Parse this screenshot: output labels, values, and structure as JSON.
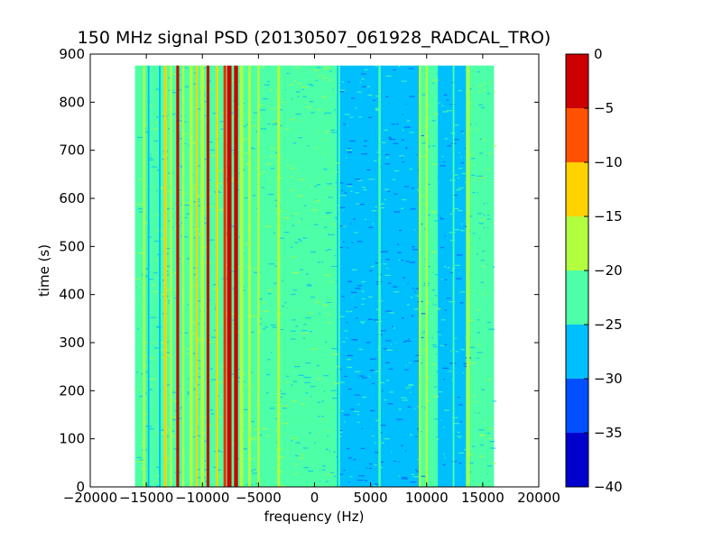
{
  "chart_data": {
    "type": "heatmap",
    "title": "150 MHz signal PSD (20130507_061928_RADCAL_TRO)",
    "xlabel": "frequency (Hz)",
    "ylabel": "time (s)",
    "xlim": [
      -20000,
      20000
    ],
    "ylim": [
      0,
      900
    ],
    "xticks": [
      -20000,
      -15000,
      -10000,
      -5000,
      0,
      5000,
      10000,
      15000,
      20000
    ],
    "xtick_labels": [
      "−20000",
      "−15000",
      "−10000",
      "−5000",
      "0",
      "5000",
      "10000",
      "15000",
      "20000"
    ],
    "yticks": [
      0,
      100,
      200,
      300,
      400,
      500,
      600,
      700,
      800,
      900
    ],
    "ytick_labels": [
      "0",
      "100",
      "200",
      "300",
      "400",
      "500",
      "600",
      "700",
      "800",
      "900"
    ],
    "data_extent": {
      "x": [
        -16000,
        16000
      ],
      "y": [
        0,
        876
      ]
    },
    "colorbar": {
      "levels": [
        -40,
        -35,
        -30,
        -25,
        -20,
        -15,
        -10,
        -5,
        0
      ],
      "tick_labels": [
        "−40",
        "−35",
        "−30",
        "−25",
        "−20",
        "−15",
        "−10",
        "−5",
        "0"
      ],
      "colors": [
        "#0000cc",
        "#0050ff",
        "#00bfff",
        "#4dffa6",
        "#b2ff40",
        "#ffd200",
        "#ff5200",
        "#cc0000"
      ]
    },
    "bands": [
      {
        "x0": -16000,
        "x1": -3100,
        "bin": 3
      },
      {
        "x0": -3100,
        "x1": 2000,
        "bin": 3
      },
      {
        "x0": 2000,
        "x1": 9500,
        "bin": 2
      },
      {
        "x0": 9500,
        "x1": 11000,
        "bin": 3
      },
      {
        "x0": 11000,
        "x1": 13500,
        "bin": 2
      },
      {
        "x0": 13500,
        "x1": 16000,
        "bin": 3
      }
    ],
    "lines": [
      {
        "x": -15200,
        "w": 200,
        "bin": 4
      },
      {
        "x": -14800,
        "w": 150,
        "bin": 2
      },
      {
        "x": -13800,
        "w": 150,
        "bin": 2
      },
      {
        "x": -13300,
        "w": 250,
        "bin": 5
      },
      {
        "x": -12800,
        "w": 200,
        "bin": 4
      },
      {
        "x": -12200,
        "w": 250,
        "bin": 7
      },
      {
        "x": -11700,
        "w": 200,
        "bin": 4
      },
      {
        "x": -11000,
        "w": 300,
        "bin": 4
      },
      {
        "x": -10500,
        "w": 200,
        "bin": 5
      },
      {
        "x": -10000,
        "w": 300,
        "bin": 4
      },
      {
        "x": -9500,
        "w": 250,
        "bin": 7
      },
      {
        "x": -8700,
        "w": 200,
        "bin": 5
      },
      {
        "x": -8000,
        "w": 250,
        "bin": 6
      },
      {
        "x": -7600,
        "w": 400,
        "bin": 7
      },
      {
        "x": -7000,
        "w": 350,
        "bin": 7
      },
      {
        "x": -6500,
        "w": 300,
        "bin": 4
      },
      {
        "x": -5800,
        "w": 250,
        "bin": 4
      },
      {
        "x": -5000,
        "w": 200,
        "bin": 4
      },
      {
        "x": -3200,
        "w": 250,
        "bin": 4
      },
      {
        "x": -2200,
        "w": 150,
        "bin": 3
      },
      {
        "x": 600,
        "w": 120,
        "bin": 3
      },
      {
        "x": 2200,
        "w": 150,
        "bin": 3
      },
      {
        "x": 5800,
        "w": 200,
        "bin": 3
      },
      {
        "x": 9400,
        "w": 200,
        "bin": 4
      },
      {
        "x": 10000,
        "w": 200,
        "bin": 4
      },
      {
        "x": 10400,
        "w": 150,
        "bin": 3
      },
      {
        "x": 12400,
        "w": 150,
        "bin": 3
      },
      {
        "x": 13700,
        "w": 250,
        "bin": 4
      },
      {
        "x": 14400,
        "w": 150,
        "bin": 3
      },
      {
        "x": 15300,
        "w": 200,
        "bin": 3
      }
    ]
  }
}
